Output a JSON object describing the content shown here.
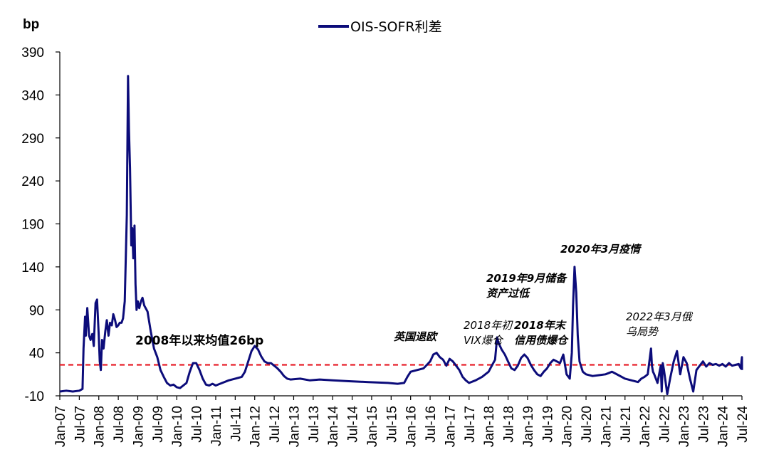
{
  "chart_data": {
    "type": "line",
    "ylabel": "bp",
    "ylim": [
      -10,
      390
    ],
    "yticks": [
      -10,
      40,
      90,
      140,
      190,
      240,
      290,
      340,
      390
    ],
    "xlim": [
      "2007-01",
      "2024-07"
    ],
    "xticks": [
      "Jan-07",
      "Jul-07",
      "Jan-08",
      "Jul-08",
      "Jan-09",
      "Jul-09",
      "Jan-10",
      "Jul-10",
      "Jan-11",
      "Jul-11",
      "Jan-12",
      "Jul-12",
      "Jan-13",
      "Jul-13",
      "Jan-14",
      "Jul-14",
      "Jan-15",
      "Jul-15",
      "Jan-16",
      "Jul-16",
      "Jan-17",
      "Jul-17",
      "Jan-18",
      "Jul-18",
      "Jan-19",
      "Jul-19",
      "Jan-20",
      "Jul-20",
      "Jan-21",
      "Jul-21",
      "Jan-22",
      "Jul-22",
      "Jan-23",
      "Jul-23",
      "Jan-24",
      "Jul-24"
    ],
    "series": [
      {
        "name": "OIS-SOFR利差",
        "color": "#0c0c7a",
        "points": [
          [
            "2007-01",
            -5
          ],
          [
            "2007-03",
            -4
          ],
          [
            "2007-05",
            -5
          ],
          [
            "2007-07",
            -4
          ],
          [
            "2007-08",
            -2
          ],
          [
            "2007-08-10",
            45
          ],
          [
            "2007-08-25",
            82
          ],
          [
            "2007-09",
            60
          ],
          [
            "2007-09-15",
            92
          ],
          [
            "2007-10",
            60
          ],
          [
            "2007-10-15",
            55
          ],
          [
            "2007-11",
            62
          ],
          [
            "2007-11-15",
            48
          ],
          [
            "2007-12",
            98
          ],
          [
            "2007-12-15",
            102
          ],
          [
            "2008-01",
            60
          ],
          [
            "2008-01-10",
            30
          ],
          [
            "2008-01-20",
            20
          ],
          [
            "2008-02",
            55
          ],
          [
            "2008-02-15",
            45
          ],
          [
            "2008-03",
            65
          ],
          [
            "2008-03-15",
            78
          ],
          [
            "2008-04",
            60
          ],
          [
            "2008-04-15",
            75
          ],
          [
            "2008-05",
            72
          ],
          [
            "2008-05-15",
            85
          ],
          [
            "2008-06",
            78
          ],
          [
            "2008-06-15",
            70
          ],
          [
            "2008-07",
            72
          ],
          [
            "2008-07-15",
            75
          ],
          [
            "2008-08",
            75
          ],
          [
            "2008-08-15",
            80
          ],
          [
            "2008-09",
            100
          ],
          [
            "2008-09-20",
            200
          ],
          [
            "2008-10",
            362
          ],
          [
            "2008-10-10",
            300
          ],
          [
            "2008-10-20",
            255
          ],
          [
            "2008-11",
            165
          ],
          [
            "2008-11-10",
            185
          ],
          [
            "2008-11-20",
            150
          ],
          [
            "2008-12",
            188
          ],
          [
            "2008-12-10",
            120
          ],
          [
            "2008-12-20",
            90
          ],
          [
            "2009-01",
            100
          ],
          [
            "2009-01-15",
            92
          ],
          [
            "2009-02",
            100
          ],
          [
            "2009-02-15",
            104
          ],
          [
            "2009-03",
            95
          ],
          [
            "2009-04",
            88
          ],
          [
            "2009-05",
            65
          ],
          [
            "2009-06",
            45
          ],
          [
            "2009-07",
            35
          ],
          [
            "2009-08",
            20
          ],
          [
            "2009-09",
            12
          ],
          [
            "2009-10",
            5
          ],
          [
            "2009-11",
            2
          ],
          [
            "2009-12",
            3
          ],
          [
            "2010-01",
            0
          ],
          [
            "2010-02",
            -1
          ],
          [
            "2010-03",
            2
          ],
          [
            "2010-04",
            5
          ],
          [
            "2010-05",
            18
          ],
          [
            "2010-06",
            28
          ],
          [
            "2010-07",
            28
          ],
          [
            "2010-08",
            20
          ],
          [
            "2010-09",
            10
          ],
          [
            "2010-10",
            3
          ],
          [
            "2010-11",
            2
          ],
          [
            "2010-12",
            4
          ],
          [
            "2011-01",
            2
          ],
          [
            "2011-03",
            5
          ],
          [
            "2011-05",
            8
          ],
          [
            "2011-07",
            10
          ],
          [
            "2011-09",
            12
          ],
          [
            "2011-10",
            18
          ],
          [
            "2011-11",
            30
          ],
          [
            "2011-12",
            42
          ],
          [
            "2012-01",
            48
          ],
          [
            "2012-02",
            44
          ],
          [
            "2012-03",
            36
          ],
          [
            "2012-04",
            30
          ],
          [
            "2012-05",
            28
          ],
          [
            "2012-06",
            28
          ],
          [
            "2012-07",
            25
          ],
          [
            "2012-08",
            22
          ],
          [
            "2012-09",
            18
          ],
          [
            "2012-10",
            13
          ],
          [
            "2012-11",
            10
          ],
          [
            "2012-12",
            9
          ],
          [
            "2013-03",
            10
          ],
          [
            "2013-06",
            8
          ],
          [
            "2013-09",
            9
          ],
          [
            "2014-01",
            8
          ],
          [
            "2014-06",
            7
          ],
          [
            "2014-12",
            6
          ],
          [
            "2015-06",
            5
          ],
          [
            "2015-09",
            4
          ],
          [
            "2015-11",
            5
          ],
          [
            "2015-12",
            12
          ],
          [
            "2016-01",
            18
          ],
          [
            "2016-03",
            20
          ],
          [
            "2016-05",
            22
          ],
          [
            "2016-07",
            30
          ],
          [
            "2016-08",
            38
          ],
          [
            "2016-09",
            40
          ],
          [
            "2016-10",
            35
          ],
          [
            "2016-11",
            32
          ],
          [
            "2016-12",
            25
          ],
          [
            "2017-01",
            33
          ],
          [
            "2017-02",
            30
          ],
          [
            "2017-03",
            25
          ],
          [
            "2017-04",
            20
          ],
          [
            "2017-05",
            12
          ],
          [
            "2017-06",
            8
          ],
          [
            "2017-07",
            5
          ],
          [
            "2017-09",
            8
          ],
          [
            "2017-11",
            12
          ],
          [
            "2017-12",
            15
          ],
          [
            "2018-01",
            18
          ],
          [
            "2018-02",
            25
          ],
          [
            "2018-03",
            32
          ],
          [
            "2018-03-20",
            58
          ],
          [
            "2018-04",
            52
          ],
          [
            "2018-05",
            44
          ],
          [
            "2018-06",
            38
          ],
          [
            "2018-07",
            30
          ],
          [
            "2018-08",
            22
          ],
          [
            "2018-09",
            20
          ],
          [
            "2018-10",
            25
          ],
          [
            "2018-11",
            34
          ],
          [
            "2018-12",
            38
          ],
          [
            "2019-01",
            34
          ],
          [
            "2019-02",
            26
          ],
          [
            "2019-03",
            20
          ],
          [
            "2019-04",
            15
          ],
          [
            "2019-05",
            13
          ],
          [
            "2019-06",
            18
          ],
          [
            "2019-07",
            22
          ],
          [
            "2019-08",
            28
          ],
          [
            "2019-09",
            32
          ],
          [
            "2019-10",
            30
          ],
          [
            "2019-11",
            28
          ],
          [
            "2019-12",
            38
          ],
          [
            "2020-01",
            15
          ],
          [
            "2020-02",
            10
          ],
          [
            "2020-02-20",
            40
          ],
          [
            "2020-03",
            95
          ],
          [
            "2020-03-15",
            140
          ],
          [
            "2020-04",
            110
          ],
          [
            "2020-04-15",
            60
          ],
          [
            "2020-05",
            30
          ],
          [
            "2020-06",
            18
          ],
          [
            "2020-07",
            15
          ],
          [
            "2020-09",
            13
          ],
          [
            "2020-11",
            14
          ],
          [
            "2021-01",
            15
          ],
          [
            "2021-03",
            18
          ],
          [
            "2021-05",
            14
          ],
          [
            "2021-07",
            10
          ],
          [
            "2021-09",
            8
          ],
          [
            "2021-11",
            6
          ],
          [
            "2021-12",
            10
          ],
          [
            "2022-01",
            12
          ],
          [
            "2022-02",
            15
          ],
          [
            "2022-03",
            45
          ],
          [
            "2022-03-10",
            25
          ],
          [
            "2022-03-20",
            18
          ],
          [
            "2022-04",
            15
          ],
          [
            "2022-05",
            5
          ],
          [
            "2022-06",
            25
          ],
          [
            "2022-06-10",
            -5
          ],
          [
            "2022-06-20",
            28
          ],
          [
            "2022-07",
            20
          ],
          [
            "2022-08",
            -8
          ],
          [
            "2022-09",
            12
          ],
          [
            "2022-10",
            30
          ],
          [
            "2022-11",
            42
          ],
          [
            "2022-12",
            15
          ],
          [
            "2023-01",
            35
          ],
          [
            "2023-02",
            28
          ],
          [
            "2023-03",
            10
          ],
          [
            "2023-04",
            -5
          ],
          [
            "2023-05",
            20
          ],
          [
            "2023-06",
            25
          ],
          [
            "2023-07",
            30
          ],
          [
            "2023-08",
            24
          ],
          [
            "2023-09",
            28
          ],
          [
            "2023-10",
            26
          ],
          [
            "2023-11",
            27
          ],
          [
            "2023-12",
            25
          ],
          [
            "2024-01",
            27
          ],
          [
            "2024-02",
            24
          ],
          [
            "2024-03",
            28
          ],
          [
            "2024-04",
            25
          ],
          [
            "2024-05",
            26
          ],
          [
            "2024-06",
            27
          ],
          [
            "2024-06-20",
            22
          ],
          [
            "2024-07",
            35
          ],
          [
            "2024-07-02",
            20
          ]
        ]
      }
    ],
    "reference_line": {
      "value": 26,
      "color": "#e8202a",
      "style": "dashed"
    },
    "legend": {
      "position": "top-center",
      "label": "OIS-SOFR利差"
    },
    "annotations": [
      {
        "lines": [
          "2008年以来均值26bp"
        ],
        "style": "bold"
      },
      {
        "lines": [
          "英国退欧"
        ],
        "style": "bold-italic"
      },
      {
        "lines": [
          "2018年初",
          "VIX爆仓"
        ],
        "style": "italic"
      },
      {
        "lines": [
          "2018年末",
          "信用债爆仓"
        ],
        "style": "bold-italic"
      },
      {
        "lines": [
          "2019年9月储备",
          "资产过低"
        ],
        "style": "bold-italic"
      },
      {
        "lines": [
          "2020年3月疫情"
        ],
        "style": "bold-italic"
      },
      {
        "lines": [
          "2022年3月俄",
          "乌局势"
        ],
        "style": "italic"
      }
    ],
    "grid": false
  }
}
